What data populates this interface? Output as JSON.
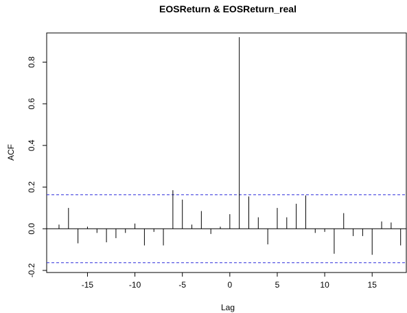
{
  "chart_data": {
    "type": "bar",
    "title": "EOSReturn & EOSReturn_real",
    "xlabel": "Lag",
    "ylabel": "ACF",
    "xlim": [
      -19.3,
      18.6
    ],
    "ylim": [
      -0.21,
      0.94
    ],
    "xticks": [
      -15,
      -10,
      -5,
      0,
      5,
      10,
      15
    ],
    "xtick_labels": [
      "-15",
      "-10",
      "-5",
      "0",
      "5",
      "10",
      "15"
    ],
    "yticks": [
      -0.2,
      0.0,
      0.2,
      0.4,
      0.6,
      0.8
    ],
    "ytick_labels": [
      "-0.2",
      "0.0",
      "0.2",
      "0.4",
      "0.6",
      "0.8"
    ],
    "ci": [
      0.163,
      -0.163
    ],
    "ci_color": "#2b2bdc",
    "lags": [
      -18,
      -17,
      -16,
      -15,
      -14,
      -13,
      -12,
      -11,
      -10,
      -9,
      -8,
      -7,
      -6,
      -5,
      -4,
      -3,
      -2,
      -1,
      0,
      1,
      2,
      3,
      4,
      5,
      6,
      7,
      8,
      9,
      10,
      11,
      12,
      13,
      14,
      15,
      16,
      17,
      18
    ],
    "values": [
      0.02,
      0.1,
      -0.07,
      0.01,
      -0.02,
      -0.065,
      -0.045,
      -0.02,
      0.025,
      -0.08,
      -0.015,
      -0.08,
      0.185,
      0.14,
      0.02,
      0.085,
      -0.025,
      0.01,
      0.07,
      0.92,
      0.155,
      0.055,
      -0.075,
      0.1,
      0.055,
      0.12,
      0.16,
      -0.02,
      -0.015,
      -0.12,
      0.075,
      -0.035,
      -0.035,
      -0.125,
      0.035,
      0.03,
      -0.08
    ]
  }
}
